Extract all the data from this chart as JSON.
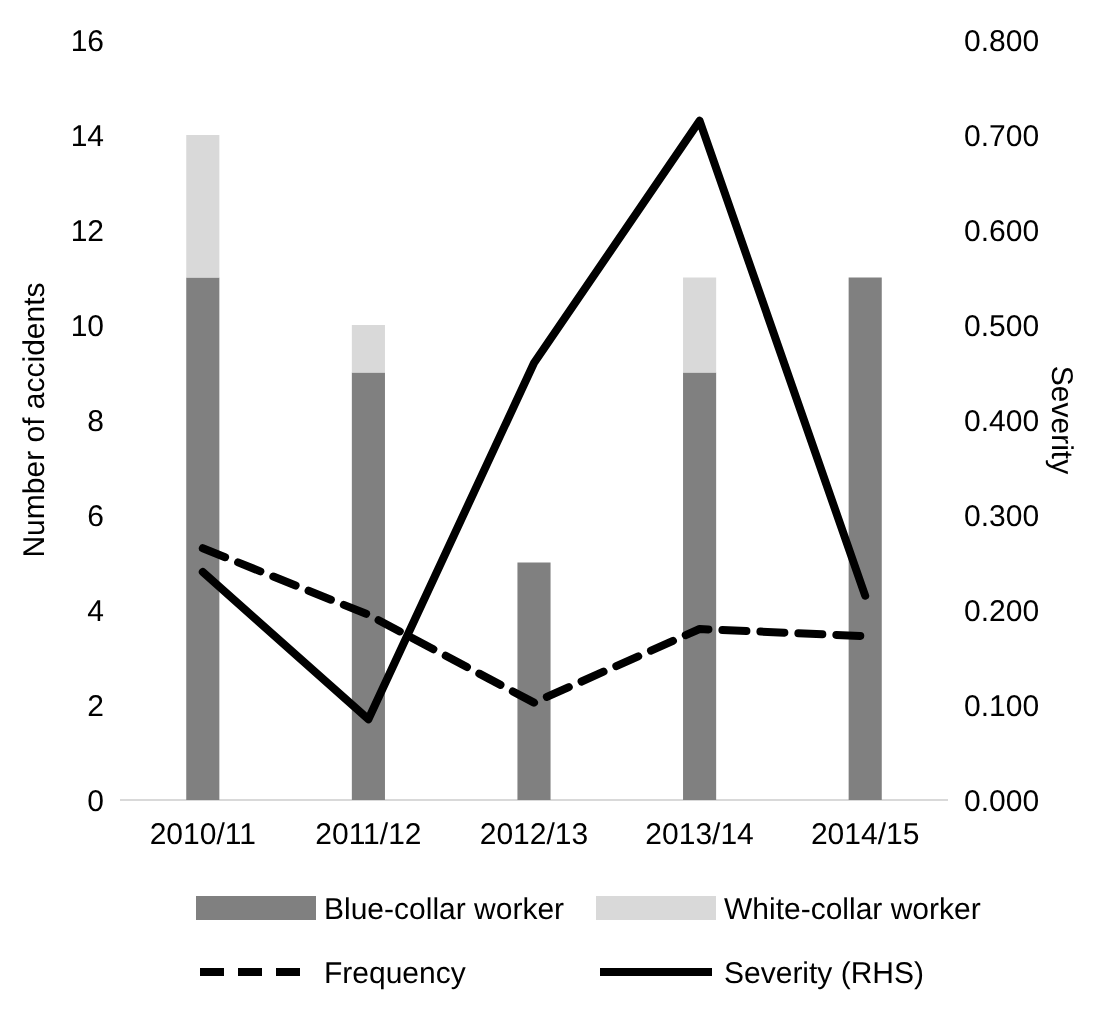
{
  "chart_data": {
    "type": "bar",
    "stacked": true,
    "categories": [
      "2010/11",
      "2011/12",
      "2012/13",
      "2013/14",
      "2014/15"
    ],
    "ylabel": "Number of accidents",
    "y2label": "Severity",
    "ylim": [
      0,
      16
    ],
    "yticks": [
      0,
      2,
      4,
      6,
      8,
      10,
      12,
      14,
      16
    ],
    "y2lim": [
      0,
      0.8
    ],
    "y2ticks": [
      {
        "value": 0,
        "label": "0.000"
      },
      {
        "value": 0.1,
        "label": "0.100"
      },
      {
        "value": 0.2,
        "label": "0.200"
      },
      {
        "value": 0.3,
        "label": "0.300"
      },
      {
        "value": 0.4,
        "label": "0.400"
      },
      {
        "value": 0.5,
        "label": "0.500"
      },
      {
        "value": 0.6,
        "label": "0.600"
      },
      {
        "value": 0.7,
        "label": "0.700"
      },
      {
        "value": 0.8,
        "label": "0.800"
      }
    ],
    "legend": "bottom",
    "series": [
      {
        "name": "Blue-collar worker",
        "color": "#808080",
        "values": [
          11,
          9,
          5,
          9,
          11
        ]
      },
      {
        "name": "White-collar worker",
        "color": "#d9d9d9",
        "values": [
          3,
          1,
          0,
          2,
          0
        ]
      },
      {
        "name": "Frequency",
        "type": "line",
        "color": "#000000",
        "line_style": "dashed",
        "values": [
          5.3,
          3.9,
          2.05,
          3.6,
          3.45
        ]
      },
      {
        "name": "Severity (RHS)",
        "type": "line",
        "axis": "y2",
        "color": "#000000",
        "line_style": "solid",
        "values": [
          0.24,
          0.085,
          0.46,
          0.715,
          0.215
        ]
      }
    ]
  }
}
